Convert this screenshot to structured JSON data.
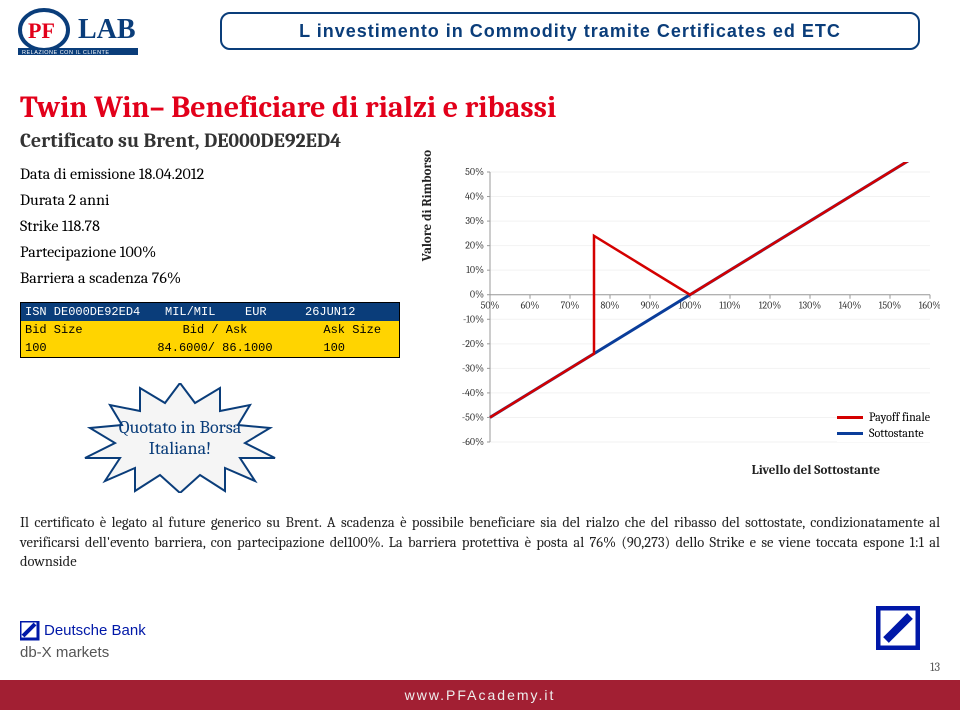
{
  "header": {
    "title": "L investimento in Commodity tramite Certificates ed ETC",
    "logo": {
      "top": "PF",
      "main": "LAB",
      "tag": "RELAZIONE CON IL CLIENTE"
    }
  },
  "main_title": "Twin Win– Beneficiare di rialzi e ribassi",
  "sub_title": "Certificato su Brent, DE000DE92ED4",
  "facts": {
    "l1": "Data di emissione 18.04.2012",
    "l2": "Durata 2 anni",
    "l3": "Strike 118.78",
    "l4": "Partecipazione 100%",
    "l5": "Barriera a scadenza 76%"
  },
  "quote": {
    "r0": {
      "c1": "ISN DE000DE92ED4",
      "c2": "MIL/MIL",
      "c3": "EUR",
      "c4": "26JUN12"
    },
    "r1": {
      "c1": "Bid Size",
      "c2": "Bid / Ask",
      "c3": "",
      "c4": "Ask Size"
    },
    "r2": {
      "c1": "100",
      "c2": "84.6000/ 86.1000",
      "c3": "",
      "c4": "100"
    }
  },
  "badge": {
    "line1": "Quotato in Borsa",
    "line2": "Italiana!"
  },
  "chart": {
    "type": "line",
    "ylabel": "Valore di Rimborso",
    "xlabel": "Livello del Sottostante",
    "x_ticks": [
      "50%",
      "60%",
      "70%",
      "80%",
      "90%",
      "100%",
      "110%",
      "120%",
      "130%",
      "140%",
      "150%",
      "160%"
    ],
    "x_min": 50,
    "x_max": 160,
    "y_ticks": [
      "-60%",
      "-50%",
      "-40%",
      "-30%",
      "-20%",
      "-10%",
      "0%",
      "10%",
      "20%",
      "30%",
      "40%",
      "50%"
    ],
    "y_min": -60,
    "y_max": 50,
    "grid_color": "#f2f2f2",
    "axis_color": "#999",
    "series": {
      "sottostante": {
        "color": "#0a3d9a",
        "width": 3,
        "points": [
          [
            50,
            -50
          ],
          [
            160,
            60
          ]
        ]
      },
      "payoff": {
        "color": "#d40000",
        "width": 2.5,
        "points": [
          [
            50,
            -50
          ],
          [
            76,
            -24
          ],
          [
            76,
            24
          ],
          [
            100,
            0
          ],
          [
            160,
            60
          ]
        ]
      },
      "barrier": {
        "color": "#d40000",
        "dash": "3,3",
        "width": 1.5,
        "points": [
          [
            76,
            -24
          ],
          [
            76,
            24
          ]
        ]
      }
    },
    "legend": [
      {
        "label": "Payoff finale",
        "color": "#d40000"
      },
      {
        "label": "Sottostante",
        "color": "#0a3d9a"
      }
    ],
    "tick_fontsize": 10,
    "tick_color": "#333"
  },
  "body_text": "Il certificato è legato al future generico su Brent. A scadenza è possibile beneficiare sia del rialzo che del ribasso del sottostate, condizionatamente al verificarsi dell'evento barriera, con partecipazione del100%. La barriera protettiva è posta al 76% (90,273) dello Strike e se viene toccata espone 1:1 al downside",
  "db": {
    "line1": "Deutsche Bank",
    "line2": "db-X markets"
  },
  "footer": "www.PFAcademy.it",
  "pagenum": "13",
  "colors": {
    "brand_blue": "#0a3d7a",
    "brand_red": "#e2001a",
    "footer_bg": "#a21f33",
    "db_blue": "#0018a8",
    "quote_yellow": "#ffd400"
  }
}
